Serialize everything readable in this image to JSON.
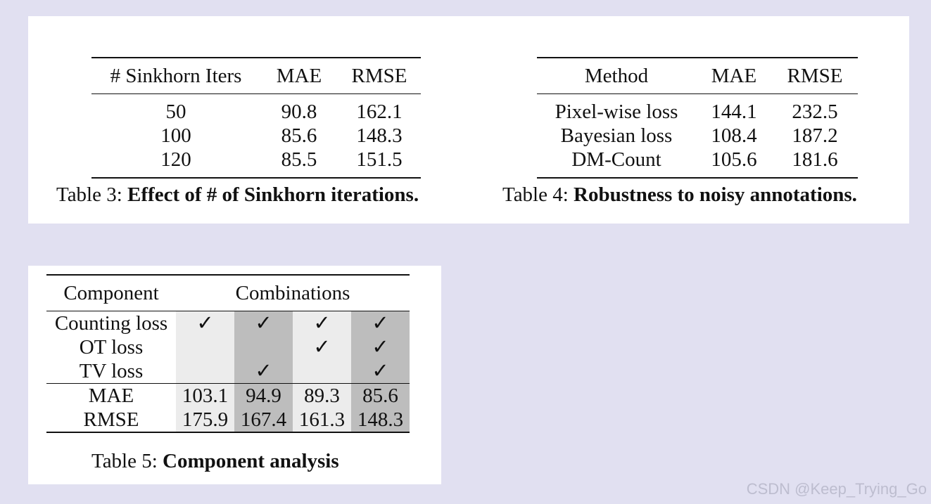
{
  "table3": {
    "headers": [
      "# Sinkhorn Iters",
      "MAE",
      "RMSE"
    ],
    "rows": [
      [
        "50",
        "90.8",
        "162.1"
      ],
      [
        "100",
        "85.6",
        "148.3"
      ],
      [
        "120",
        "85.5",
        "151.5"
      ]
    ],
    "caption_label": "Table 3:",
    "caption_text": "Effect of # of Sinkhorn iterations."
  },
  "table4": {
    "headers": [
      "Method",
      "MAE",
      "RMSE"
    ],
    "rows": [
      [
        "Pixel-wise loss",
        "144.1",
        "232.5"
      ],
      [
        "Bayesian loss",
        "108.4",
        "187.2"
      ],
      [
        "DM-Count",
        "105.6",
        "181.6"
      ]
    ],
    "bold_row": "DM-Count",
    "caption_label": "Table 4:",
    "caption_text": "Robustness to noisy annotations."
  },
  "table5": {
    "headers": [
      "Component",
      "Combinations"
    ],
    "components": [
      {
        "label": "Counting loss",
        "checks": [
          "✓",
          "✓",
          "✓",
          "✓"
        ]
      },
      {
        "label": "OT loss",
        "checks": [
          "",
          "",
          "✓",
          "✓"
        ]
      },
      {
        "label": "TV loss",
        "checks": [
          "",
          "✓",
          "",
          "✓"
        ]
      }
    ],
    "metrics": [
      {
        "label": "MAE",
        "values": [
          "103.1",
          "94.9",
          "89.3",
          "85.6"
        ]
      },
      {
        "label": "RMSE",
        "values": [
          "175.9",
          "167.4",
          "161.3",
          "148.3"
        ]
      }
    ],
    "column_shading": [
      "light",
      "dark",
      "light",
      "dark"
    ],
    "caption_label": "Table 5:",
    "caption_text": "Component analysis"
  },
  "colors": {
    "background": "#e1e0f1",
    "panel": "#ffffff",
    "shade_light": "#ececec",
    "shade_dark": "#bdbdbd"
  },
  "watermark": "CSDN @Keep_Trying_Go"
}
